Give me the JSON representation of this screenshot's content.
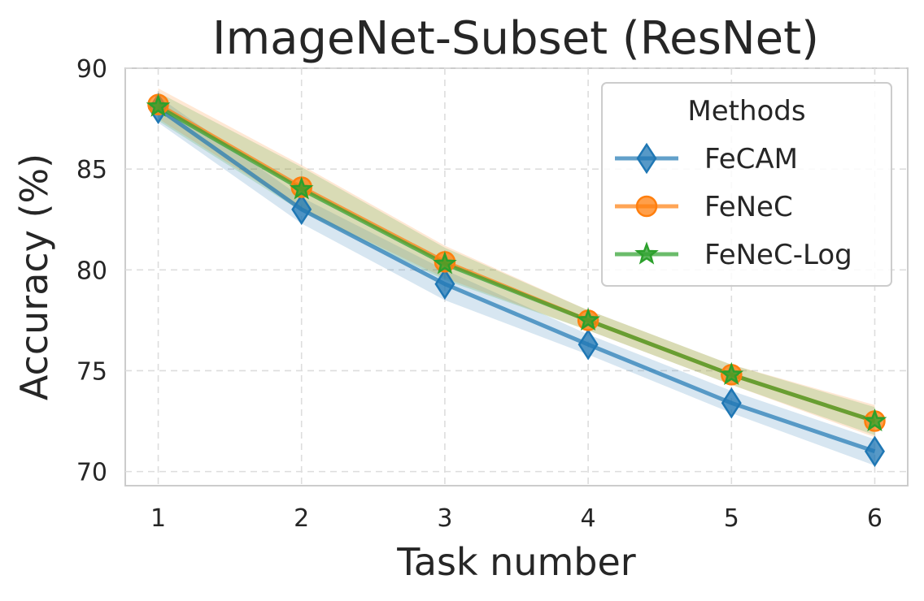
{
  "chart_data": {
    "type": "line",
    "title": "ImageNet-Subset (ResNet)",
    "xlabel": "Task number",
    "ylabel": "Accuracy (%)",
    "x": [
      1,
      2,
      3,
      4,
      5,
      6
    ],
    "xlim": [
      0.77,
      6.23
    ],
    "ylim": [
      69.3,
      90
    ],
    "yticks": [
      70,
      75,
      80,
      85,
      90
    ],
    "grid": true,
    "legend": {
      "title": "Methods",
      "placement": "top-right"
    },
    "series": [
      {
        "name": "FeCAM",
        "color": "#1f77b4",
        "marker": "diamond",
        "values": [
          88.0,
          83.0,
          79.3,
          76.3,
          73.4,
          71.0
        ],
        "band_lower": [
          87.3,
          82.3,
          78.5,
          75.8,
          72.9,
          70.3
        ],
        "band_upper": [
          88.6,
          83.6,
          80.0,
          76.8,
          74.0,
          71.6
        ]
      },
      {
        "name": "FeNeC",
        "color": "#ff7f0e",
        "marker": "circle",
        "values": [
          88.2,
          84.1,
          80.4,
          77.5,
          74.8,
          72.5
        ],
        "band_lower": [
          87.5,
          83.0,
          79.6,
          77.0,
          74.3,
          71.7
        ],
        "band_upper": [
          89.0,
          85.2,
          81.2,
          78.0,
          75.3,
          73.3
        ]
      },
      {
        "name": "FeNeC-Log",
        "color": "#2ca02c",
        "marker": "star",
        "values": [
          88.1,
          84.0,
          80.3,
          77.5,
          74.8,
          72.5
        ],
        "band_lower": [
          87.4,
          82.9,
          79.5,
          77.0,
          74.3,
          71.8
        ],
        "band_upper": [
          88.8,
          85.1,
          81.1,
          78.0,
          75.3,
          73.2
        ]
      }
    ]
  }
}
